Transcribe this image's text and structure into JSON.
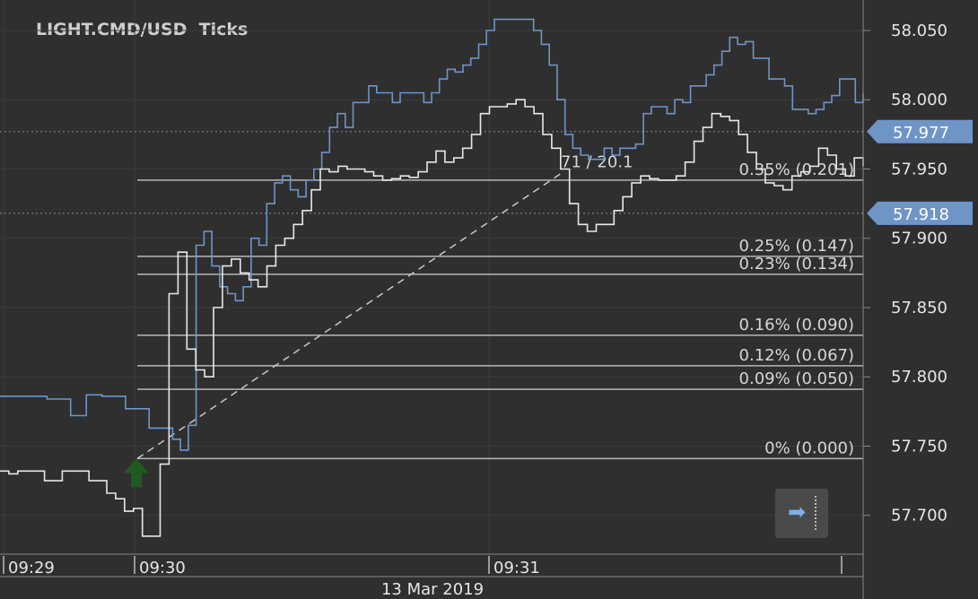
{
  "title": "LIGHT.CMD/USD  Ticks",
  "colors": {
    "background": "#2f2f2f",
    "grid": "#3c3c3c",
    "ask_line": "#6f95c7",
    "bid_line": "#e8e8e8",
    "fib_line": "#b8b8b8",
    "badge": "#6f95c7",
    "buy_arrow": "#1f5a1f",
    "text": "#e6e6e6"
  },
  "chart_data": {
    "type": "line",
    "instrument": "LIGHT.CMD/USD",
    "timeframe": "Ticks",
    "y_ticks": [
      "58.050",
      "58.000",
      "57.950",
      "57.900",
      "57.850",
      "57.800",
      "57.750",
      "57.700"
    ],
    "ylim": [
      57.672,
      58.072
    ],
    "x_ticks": [
      "09:29",
      "09:30",
      "09:31"
    ],
    "date_label": "13 Mar 2019",
    "price_badges": [
      {
        "label": "57.977",
        "value": 57.977
      },
      {
        "label": "57.918",
        "value": 57.918
      }
    ],
    "fibonacci_levels": [
      {
        "label": "0.35% (0.201)",
        "value": 57.942
      },
      {
        "label": "0.25% (0.147)",
        "value": 57.887
      },
      {
        "label": "0.23% (0.134)",
        "value": 57.874
      },
      {
        "label": "0.16% (0.090)",
        "value": 57.83
      },
      {
        "label": "0.12% (0.067)",
        "value": 57.808
      },
      {
        "label": "0.09% (0.050)",
        "value": 57.791
      },
      {
        "label": "0% (0.000)",
        "value": 57.741
      }
    ],
    "trend_label": "71 / 20.1",
    "trend_line": {
      "start": 57.741,
      "end": 57.948
    },
    "buy_marker_value": 57.741,
    "series": [
      {
        "role": "ask",
        "values": [
          57.786,
          57.786,
          57.786,
          57.786,
          57.786,
          57.786,
          57.784,
          57.784,
          57.784,
          57.772,
          57.772,
          57.787,
          57.787,
          57.786,
          57.786,
          57.786,
          57.777,
          57.777,
          57.777,
          57.763,
          57.763,
          57.763,
          57.755,
          57.747,
          57.765,
          57.895,
          57.905,
          57.88,
          57.865,
          57.86,
          57.855,
          57.865,
          57.9,
          57.895,
          57.925,
          57.94,
          57.945,
          57.935,
          57.93,
          57.942,
          57.95,
          57.962,
          57.98,
          57.99,
          57.98,
          57.998,
          57.998,
          58.01,
          58.005,
          58.005,
          57.998,
          58.005,
          58.005,
          58.005,
          57.998,
          58.005,
          58.015,
          58.022,
          58.02,
          58.025,
          58.03,
          58.04,
          58.05,
          58.058,
          58.058,
          58.058,
          58.058,
          58.058,
          58.05,
          58.04,
          58.025,
          58.0,
          57.975,
          57.965,
          57.96,
          57.957,
          57.957,
          57.965,
          57.96,
          57.965,
          57.965,
          57.968,
          57.99,
          57.995,
          57.995,
          57.99,
          58.0,
          57.998,
          58.01,
          58.01,
          58.018,
          58.025,
          58.035,
          58.045,
          58.04,
          58.042,
          58.03,
          58.03,
          58.015,
          58.015,
          58.01,
          57.993,
          57.993,
          57.99,
          57.993,
          57.998,
          58.003,
          58.015,
          58.015,
          57.998,
          58.005
        ]
      },
      {
        "role": "bid",
        "values": [
          57.732,
          57.73,
          57.732,
          57.732,
          57.732,
          57.725,
          57.725,
          57.732,
          57.732,
          57.732,
          57.725,
          57.725,
          57.716,
          57.712,
          57.703,
          57.705,
          57.685,
          57.685,
          57.737,
          57.86,
          57.89,
          57.82,
          57.805,
          57.8,
          57.85,
          57.88,
          57.885,
          57.875,
          57.87,
          57.865,
          57.88,
          57.895,
          57.9,
          57.91,
          57.92,
          57.935,
          57.95,
          57.948,
          57.952,
          57.95,
          57.95,
          57.948,
          57.945,
          57.942,
          57.943,
          57.945,
          57.944,
          57.948,
          57.955,
          57.963,
          57.955,
          57.958,
          57.965,
          57.975,
          57.99,
          57.995,
          57.995,
          57.997,
          58.0,
          57.995,
          57.99,
          57.975,
          57.965,
          57.95,
          57.925,
          57.91,
          57.905,
          57.91,
          57.91,
          57.92,
          57.93,
          57.94,
          57.945,
          57.943,
          57.942,
          57.942,
          57.945,
          57.955,
          57.97,
          57.98,
          57.99,
          57.988,
          57.985,
          57.975,
          57.962,
          57.95,
          57.94,
          57.938,
          57.935,
          57.945,
          57.948,
          57.952,
          57.965,
          57.96,
          57.95,
          57.945,
          57.958,
          57.952
        ]
      }
    ]
  }
}
